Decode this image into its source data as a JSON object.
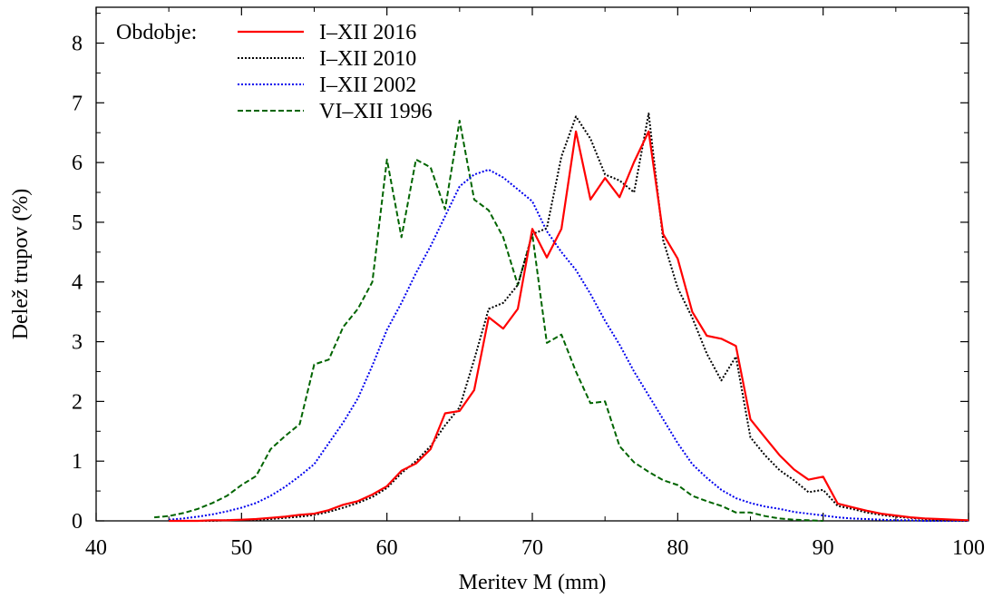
{
  "chart_data": {
    "type": "line",
    "title": "",
    "xlabel": "Meritev M (mm)",
    "ylabel": "Delež trupov (%)",
    "xlim": [
      40,
      100
    ],
    "ylim": [
      0,
      8.6
    ],
    "xticks": [
      40,
      50,
      60,
      70,
      80,
      90,
      100
    ],
    "yticks": [
      0,
      1,
      2,
      3,
      4,
      5,
      6,
      7,
      8
    ],
    "grid": false,
    "legend": {
      "title": "Obdobje:",
      "position": "top-left"
    },
    "series": [
      {
        "name": "I–XII 2016",
        "color": "#ff0000",
        "dash": "solid",
        "x": [
          45,
          46,
          47,
          48,
          49,
          50,
          51,
          52,
          53,
          54,
          55,
          56,
          57,
          58,
          59,
          60,
          61,
          62,
          63,
          64,
          65,
          66,
          67,
          68,
          69,
          70,
          71,
          72,
          73,
          74,
          75,
          76,
          77,
          78,
          79,
          80,
          81,
          82,
          83,
          84,
          85,
          86,
          87,
          88,
          89,
          90,
          91,
          92,
          93,
          94,
          95,
          96,
          97,
          98,
          99,
          100
        ],
        "values": [
          0.0,
          0.0,
          0.0,
          0.01,
          0.01,
          0.02,
          0.03,
          0.05,
          0.07,
          0.1,
          0.12,
          0.18,
          0.27,
          0.33,
          0.44,
          0.58,
          0.84,
          0.96,
          1.2,
          1.8,
          1.84,
          2.19,
          3.41,
          3.22,
          3.55,
          4.89,
          4.41,
          4.89,
          6.52,
          5.38,
          5.74,
          5.42,
          6.01,
          6.52,
          4.8,
          4.39,
          3.5,
          3.1,
          3.05,
          2.93,
          1.7,
          1.4,
          1.1,
          0.86,
          0.69,
          0.74,
          0.29,
          0.23,
          0.17,
          0.12,
          0.09,
          0.06,
          0.04,
          0.03,
          0.02,
          0.01
        ]
      },
      {
        "name": "I–XII 2010",
        "color": "#000000",
        "dash": "dotted",
        "x": [
          45,
          46,
          47,
          48,
          49,
          50,
          51,
          52,
          53,
          54,
          55,
          56,
          57,
          58,
          59,
          60,
          61,
          62,
          63,
          64,
          65,
          66,
          67,
          68,
          69,
          70,
          71,
          72,
          73,
          74,
          75,
          76,
          77,
          78,
          79,
          80,
          81,
          82,
          83,
          84,
          85,
          86,
          87,
          88,
          89,
          90,
          91,
          92,
          93,
          94,
          95,
          96,
          97,
          98,
          99,
          100
        ],
        "values": [
          0.0,
          0.0,
          0.0,
          0.0,
          0.01,
          0.01,
          0.02,
          0.03,
          0.05,
          0.07,
          0.1,
          0.15,
          0.22,
          0.3,
          0.4,
          0.55,
          0.8,
          1.0,
          1.25,
          1.6,
          1.9,
          2.7,
          3.55,
          3.65,
          3.95,
          4.8,
          4.9,
          6.1,
          6.77,
          6.4,
          5.8,
          5.7,
          5.5,
          6.82,
          4.7,
          3.9,
          3.4,
          2.8,
          2.35,
          2.75,
          1.4,
          1.1,
          0.85,
          0.68,
          0.48,
          0.52,
          0.25,
          0.2,
          0.14,
          0.1,
          0.07,
          0.05,
          0.03,
          0.02,
          0.01,
          0.0
        ]
      },
      {
        "name": "I–XII 2002",
        "color": "#0000ee",
        "dash": "dotted",
        "x": [
          45,
          46,
          47,
          48,
          49,
          50,
          51,
          52,
          53,
          54,
          55,
          56,
          57,
          58,
          59,
          60,
          61,
          62,
          63,
          64,
          65,
          66,
          67,
          68,
          69,
          70,
          71,
          72,
          73,
          74,
          75,
          76,
          77,
          78,
          79,
          80,
          81,
          82,
          83,
          84,
          85,
          86,
          87,
          88,
          89,
          90,
          91,
          92,
          93,
          94,
          95,
          96,
          97,
          98,
          99,
          100
        ],
        "values": [
          0.02,
          0.04,
          0.07,
          0.11,
          0.16,
          0.22,
          0.3,
          0.42,
          0.57,
          0.75,
          0.95,
          1.3,
          1.65,
          2.05,
          2.6,
          3.2,
          3.65,
          4.15,
          4.6,
          5.1,
          5.6,
          5.8,
          5.88,
          5.75,
          5.55,
          5.35,
          4.85,
          4.5,
          4.2,
          3.8,
          3.35,
          2.95,
          2.5,
          2.1,
          1.7,
          1.3,
          0.95,
          0.72,
          0.52,
          0.38,
          0.3,
          0.24,
          0.2,
          0.15,
          0.12,
          0.09,
          0.06,
          0.04,
          0.03,
          0.02,
          0.01,
          0.01,
          0.0,
          0.0,
          0.0,
          0.0
        ]
      },
      {
        "name": "VI–XII 1996",
        "color": "#006400",
        "dash": "dashed",
        "x": [
          44,
          45,
          46,
          47,
          48,
          49,
          50,
          51,
          52,
          53,
          54,
          55,
          56,
          57,
          58,
          59,
          60,
          61,
          62,
          63,
          64,
          65,
          66,
          67,
          68,
          69,
          70,
          71,
          72,
          73,
          74,
          75,
          76,
          77,
          78,
          79,
          80,
          81,
          82,
          83,
          84,
          85,
          86,
          87,
          88,
          89,
          90
        ],
        "values": [
          0.06,
          0.08,
          0.13,
          0.2,
          0.3,
          0.42,
          0.6,
          0.75,
          1.2,
          1.42,
          1.62,
          2.62,
          2.7,
          3.25,
          3.55,
          4.0,
          6.05,
          4.75,
          6.05,
          5.92,
          5.22,
          6.7,
          5.38,
          5.2,
          4.75,
          3.95,
          4.8,
          2.98,
          3.12,
          2.5,
          1.97,
          2.0,
          1.25,
          0.98,
          0.82,
          0.68,
          0.6,
          0.42,
          0.33,
          0.25,
          0.14,
          0.14,
          0.08,
          0.04,
          0.02,
          0.01,
          0.0
        ]
      }
    ]
  }
}
